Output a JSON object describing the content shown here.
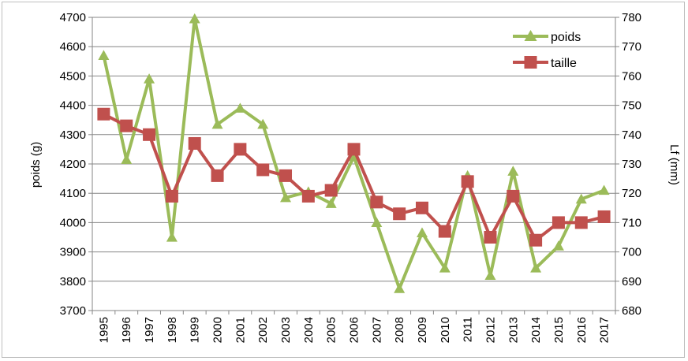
{
  "chart_data": {
    "type": "line",
    "categories": [
      "1995",
      "1996",
      "1997",
      "1998",
      "1999",
      "2000",
      "2001",
      "2002",
      "2003",
      "2004",
      "2005",
      "2006",
      "2007",
      "2008",
      "2009",
      "2010",
      "2011",
      "2012",
      "2013",
      "2014",
      "2015",
      "2016",
      "2017"
    ],
    "series": [
      {
        "name": "poids",
        "axis": "left",
        "color": "#9bbb59",
        "marker": "triangle",
        "values": [
          4570,
          4215,
          4490,
          3950,
          4695,
          4335,
          4390,
          4335,
          4085,
          4105,
          4065,
          4225,
          4000,
          3775,
          3965,
          3845,
          4160,
          3820,
          4175,
          3845,
          3920,
          4080,
          4110
        ]
      },
      {
        "name": "taille",
        "axis": "right",
        "color": "#c0504d",
        "marker": "square",
        "values": [
          747,
          743,
          740,
          719,
          737,
          726,
          735,
          728,
          726,
          719,
          721,
          735,
          717,
          713,
          715,
          707,
          724,
          705,
          719,
          704,
          710,
          710,
          712
        ]
      }
    ],
    "y_left": {
      "label": "poids (g)",
      "ylim": [
        3700,
        4700
      ],
      "ticks": [
        3700,
        3800,
        3900,
        4000,
        4100,
        4200,
        4300,
        4400,
        4500,
        4600,
        4700
      ]
    },
    "y_right": {
      "label": "Lf (mm)",
      "ylim": [
        680,
        780
      ],
      "ticks": [
        680,
        690,
        700,
        710,
        720,
        730,
        740,
        750,
        760,
        770,
        780
      ]
    },
    "grid": true,
    "legend": "top-right"
  }
}
